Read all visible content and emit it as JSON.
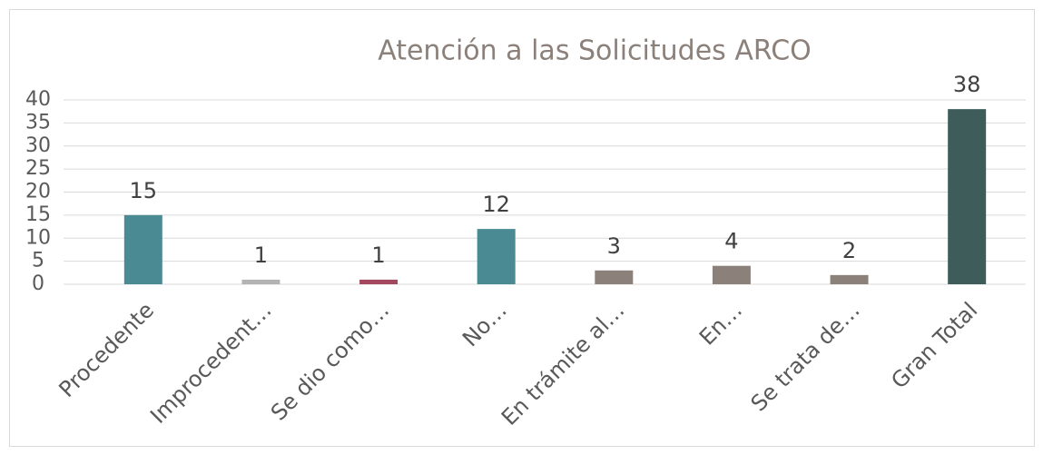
{
  "chart_data": {
    "type": "bar",
    "title": "Atención a las  Solicitudes ARCO",
    "categories": [
      "Procedente",
      "Improcedent…",
      "Se dio como…",
      "No…",
      "En trámite al…",
      "En…",
      "Se trata de…",
      "Gran Total"
    ],
    "values": [
      15,
      1,
      1,
      12,
      3,
      4,
      2,
      38
    ],
    "colors": [
      "#4a8b93",
      "#b3b3b3",
      "#a3485f",
      "#4a8b93",
      "#8c817a",
      "#8c817a",
      "#8c817a",
      "#3d5c5a"
    ],
    "ylim": [
      0,
      40
    ],
    "yticks": [
      0,
      5,
      10,
      15,
      20,
      25,
      30,
      35,
      40
    ],
    "grid": true,
    "data_labels": true
  }
}
